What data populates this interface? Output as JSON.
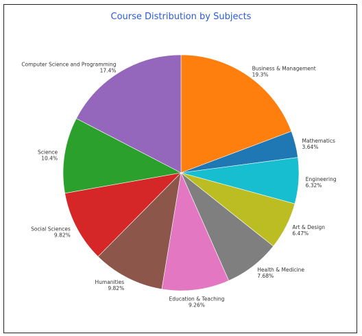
{
  "chart_data": {
    "type": "pie",
    "title": "Course Distribution by Subjects",
    "start_position": "top, clockwise",
    "slices": [
      {
        "label": "Business & Management",
        "value": 19.3,
        "value_text": "19.3%",
        "color": "#ff7f0e"
      },
      {
        "label": "Mathematics",
        "value": 3.64,
        "value_text": "3.64%",
        "color": "#1f77b4"
      },
      {
        "label": "Engineering",
        "value": 6.32,
        "value_text": "6.32%",
        "color": "#17becf"
      },
      {
        "label": "Art & Design",
        "value": 6.47,
        "value_text": "6.47%",
        "color": "#bcbd22"
      },
      {
        "label": "Health & Medicine",
        "value": 7.68,
        "value_text": "7.68%",
        "color": "#7f7f7f"
      },
      {
        "label": "Education & Teaching",
        "value": 9.26,
        "value_text": "9.26%",
        "color": "#e377c2"
      },
      {
        "label": "Humanities",
        "value": 9.82,
        "value_text": "9.82%",
        "color": "#8c564b"
      },
      {
        "label": "Social Sciences",
        "value": 9.82,
        "value_text": "9.82%",
        "color": "#d62728"
      },
      {
        "label": "Science",
        "value": 10.4,
        "value_text": "10.4%",
        "color": "#2ca02c"
      },
      {
        "label": "Computer Science and Programming",
        "value": 17.4,
        "value_text": "17.4%",
        "color": "#9467bd"
      }
    ]
  }
}
